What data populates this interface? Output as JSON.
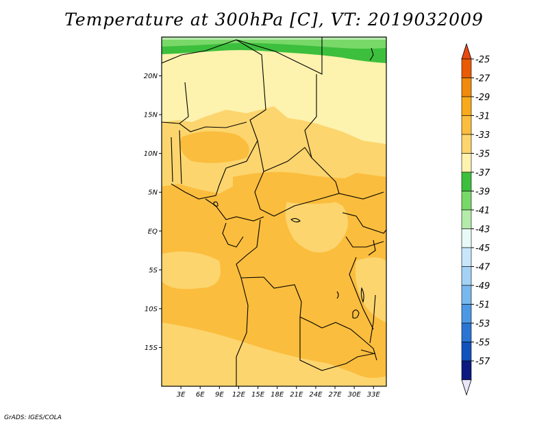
{
  "title": "Temperature at 300hPa [C], VT: 2019032009",
  "credit": "GrADS: IGES/COLA",
  "map": {
    "lon_range": [
      0,
      35
    ],
    "lat_range": [
      -20,
      25
    ],
    "lat_ticks": [
      {
        "value": 20,
        "label": "20N"
      },
      {
        "value": 15,
        "label": "15N"
      },
      {
        "value": 10,
        "label": "10N"
      },
      {
        "value": 5,
        "label": "5N"
      },
      {
        "value": 0,
        "label": "EQ"
      },
      {
        "value": -5,
        "label": "5S"
      },
      {
        "value": -10,
        "label": "10S"
      },
      {
        "value": -15,
        "label": "15S"
      }
    ],
    "lon_ticks": [
      {
        "value": 3,
        "label": "3E"
      },
      {
        "value": 6,
        "label": "6E"
      },
      {
        "value": 9,
        "label": "9E"
      },
      {
        "value": 12,
        "label": "12E"
      },
      {
        "value": 15,
        "label": "15E"
      },
      {
        "value": 18,
        "label": "18E"
      },
      {
        "value": 21,
        "label": "21E"
      },
      {
        "value": 24,
        "label": "24E"
      },
      {
        "value": 27,
        "label": "27E"
      },
      {
        "value": 30,
        "label": "30E"
      },
      {
        "value": 33,
        "label": "33E"
      }
    ]
  },
  "colorbar": {
    "levels": [
      "-25",
      "-27",
      "-29",
      "-31",
      "-33",
      "-35",
      "-37",
      "-39",
      "-41",
      "-43",
      "-45",
      "-47",
      "-49",
      "-51",
      "-53",
      "-55",
      "-57"
    ],
    "colors": [
      "#e95a05",
      "#f08a0b",
      "#f8a91c",
      "#fbbd3d",
      "#fcd56e",
      "#fdf2ae",
      "#3cbf3c",
      "#78d868",
      "#b4ebaa",
      "#e8faf6",
      "#c8e6fa",
      "#a4d2f4",
      "#78b8ee",
      "#4c98e4",
      "#2a74d4",
      "#1252bc",
      "#0a1a80"
    ],
    "top_color": "#e94a10",
    "bottom_color": "#e8e6f8"
  }
}
